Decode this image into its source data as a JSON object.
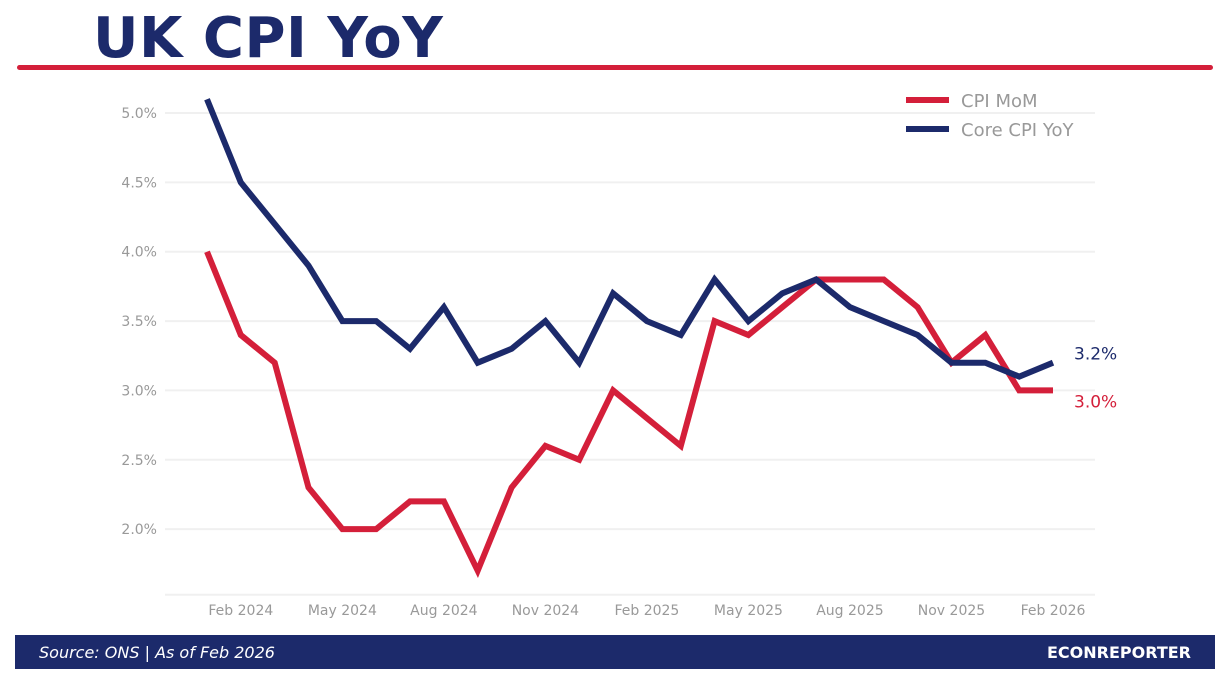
{
  "header": {
    "title": "UK CPI YoY"
  },
  "footer": {
    "source": "Source: ONS  |  As of Feb 2026",
    "brand": "ECONREPORTER"
  },
  "chart_data": {
    "type": "line",
    "title": "UK CPI YoY",
    "xlabel": "",
    "ylabel": "",
    "x": [
      "Jan 2024",
      "Feb 2024",
      "Mar 2024",
      "Apr 2024",
      "May 2024",
      "Jun 2024",
      "Jul 2024",
      "Aug 2024",
      "Sep 2024",
      "Oct 2024",
      "Nov 2024",
      "Dec 2024",
      "Jan 2025",
      "Feb 2025",
      "Mar 2025",
      "Apr 2025",
      "May 2025",
      "Jun 2025",
      "Jul 2025",
      "Aug 2025",
      "Sep 2025",
      "Oct 2025",
      "Nov 2025",
      "Dec 2025",
      "Jan 2026",
      "Feb 2026"
    ],
    "x_ticks": [
      "Feb 2024",
      "May 2024",
      "Aug 2024",
      "Nov 2024",
      "Feb 2025",
      "May 2025",
      "Aug 2025",
      "Nov 2025",
      "Feb 2026"
    ],
    "y_ticks": [
      2.0,
      2.5,
      3.0,
      3.5,
      4.0,
      4.5,
      5.0
    ],
    "y_tick_labels": [
      "2.0%",
      "2.5%",
      "3.0%",
      "3.5%",
      "4.0%",
      "4.5%",
      "5.0%"
    ],
    "ylim": [
      1.52,
      5.2
    ],
    "grid": true,
    "legend_position": "top-right",
    "series": [
      {
        "name": "CPI MoM",
        "color": "#d41f3a",
        "end_label": "3.0%",
        "values": [
          4.0,
          3.4,
          3.2,
          2.3,
          2.0,
          2.0,
          2.2,
          2.2,
          1.7,
          2.3,
          2.6,
          2.5,
          3.0,
          2.8,
          2.6,
          3.5,
          3.4,
          3.6,
          3.8,
          3.8,
          3.8,
          3.6,
          3.2,
          3.4,
          3.0,
          3.0
        ]
      },
      {
        "name": "Core CPI YoY",
        "color": "#1c2a6b",
        "end_label": "3.2%",
        "values": [
          5.1,
          4.5,
          4.2,
          3.9,
          3.5,
          3.5,
          3.3,
          3.6,
          3.2,
          3.3,
          3.5,
          3.2,
          3.7,
          3.5,
          3.4,
          3.8,
          3.5,
          3.7,
          3.8,
          3.6,
          3.5,
          3.4,
          3.2,
          3.2,
          3.1,
          3.2
        ]
      }
    ]
  }
}
